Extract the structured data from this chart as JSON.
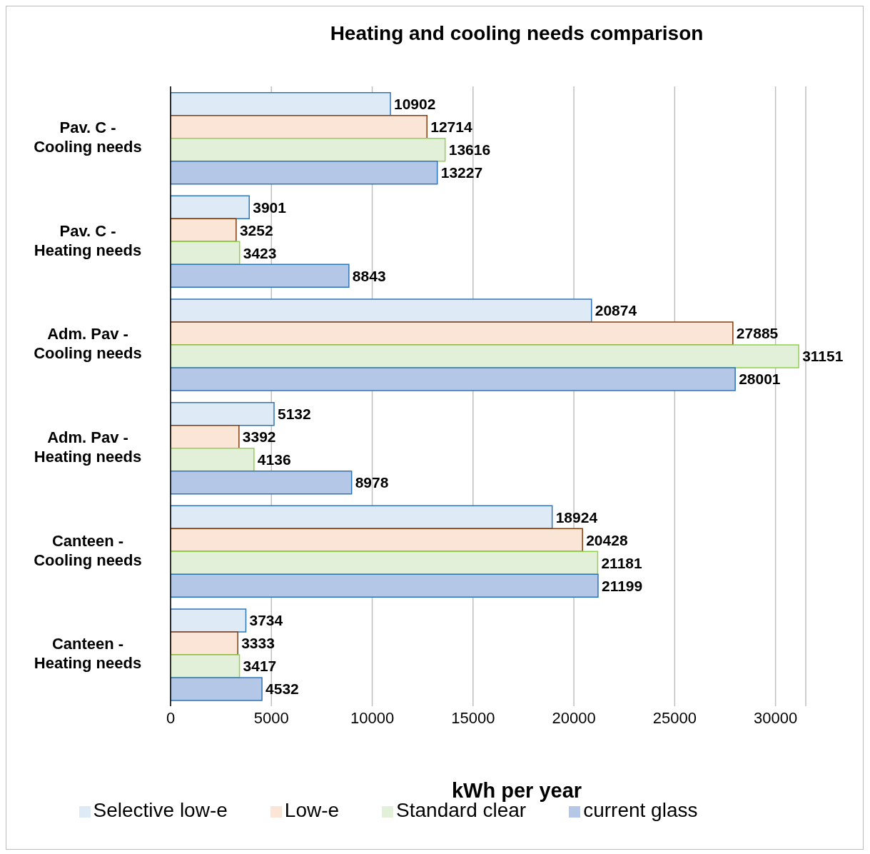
{
  "chart_data": {
    "type": "bar",
    "orientation": "horizontal",
    "title": "Heating and cooling needs comparison",
    "xlabel": "kWh per year",
    "categories": [
      "Pav. C - Cooling needs",
      "Pav. C - Heating needs",
      "Adm. Pav - Cooling needs",
      "Adm. Pav - Heating needs",
      "Canteen - Cooling needs",
      "Canteen - Heating needs"
    ],
    "series": [
      {
        "name": "Selective low-e",
        "color": "#deebf7",
        "values": [
          10902,
          3901,
          20874,
          5132,
          18924,
          3734
        ]
      },
      {
        "name": "Low-e",
        "color": "#fbe5d6",
        "values": [
          12714,
          3252,
          27885,
          3392,
          20428,
          3333
        ]
      },
      {
        "name": "Standard clear",
        "color": "#e2f0d9",
        "values": [
          13616,
          3423,
          31151,
          4136,
          21181,
          3417
        ]
      },
      {
        "name": "current glass",
        "color": "#b4c7e7",
        "values": [
          13227,
          8843,
          28001,
          8978,
          21199,
          4532
        ]
      }
    ],
    "xlim": [
      0,
      31500
    ],
    "xticks": [
      0,
      5000,
      10000,
      15000,
      20000,
      25000,
      30000
    ],
    "grid": "x",
    "legend": "bottom",
    "data_labels": true
  }
}
